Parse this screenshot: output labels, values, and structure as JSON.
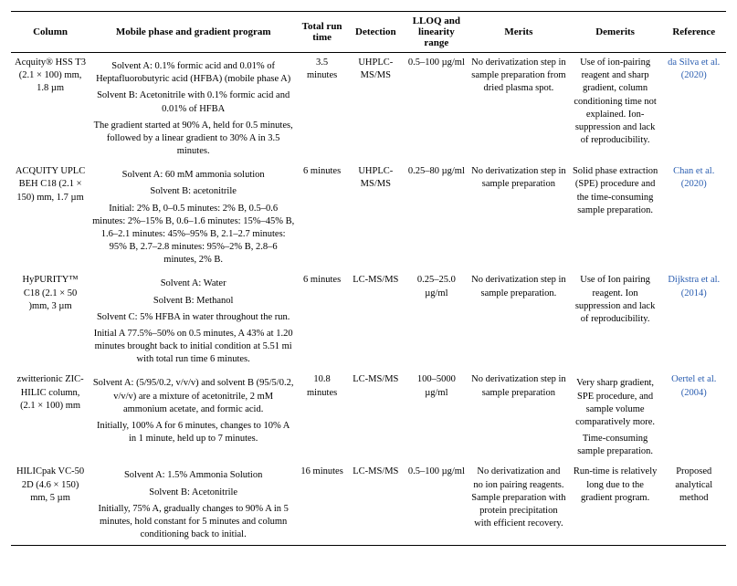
{
  "headers": {
    "c1": "Column",
    "c2": "Mobile phase and gradient program",
    "c3": "Total run time",
    "c4": "Detection",
    "c5": "LLOQ and linearity range",
    "c6": "Merits",
    "c7": "Demerits",
    "c8": "Reference"
  },
  "rows": [
    {
      "column": "Acquity® HSS T3 (2.1 × 100) mm, 1.8 µm",
      "mobile_p1": "Solvent A: 0.1% formic acid and 0.01% of Heptafluorobutyric acid (HFBA) (mobile phase A)",
      "mobile_p2": "Solvent B: Acetonitrile with 0.1% formic acid and 0.01% of HFBA",
      "mobile_p3": "The gradient started at 90% A, held for 0.5 minutes, followed by a linear gradient to 30% A in 3.5 minutes.",
      "runtime": "3.5 minutes",
      "detection": "UHPLC-MS/MS",
      "lloq": "0.5–100 µg/ml",
      "merits": "No derivatization step in sample preparation from dried plasma spot.",
      "demerits": "Use of ion-pairing reagent and sharp gradient, column conditioning time not explained. Ion-suppression and lack of reproducibility.",
      "ref_link": "da Silva et al. (2020)",
      "ref_text": ""
    },
    {
      "column": "ACQUITY UPLC BEH C18 (2.1 × 150) mm, 1.7 µm",
      "mobile_p1": "Solvent A: 60 mM ammonia solution",
      "mobile_p2": "Solvent B: acetonitrile",
      "mobile_p3": "Initial: 2% B, 0–0.5 minutes: 2% B, 0.5–0.6 minutes: 2%–15% B, 0.6–1.6 minutes: 15%–45% B, 1.6–2.1 minutes: 45%–95% B, 2.1–2.7 minutes: 95% B, 2.7–2.8 minutes: 95%–2% B, 2.8–6 minutes, 2% B.",
      "runtime": "6 minutes",
      "detection": "UHPLC-MS/MS",
      "lloq": "0.25–80 µg/ml",
      "merits": "No derivatization step in sample preparation",
      "demerits": "Solid phase extraction (SPE) procedure and the time-consuming sample preparation.",
      "ref_link": "Chan et al. (2020)",
      "ref_text": ""
    },
    {
      "column": "HyPURITY™ C18 (2.1 × 50 )mm, 3 µm",
      "mobile_p1": "Solvent A: Water",
      "mobile_p2": "Solvent B: Methanol",
      "mobile_p3": "Solvent C: 5% HFBA in water throughout the run.",
      "mobile_p4": "Initial A 77.5%–50% on 0.5 minutes, A 43% at 1.20 minutes brought back to initial condition at 5.51 mi with total run time 6 minutes.",
      "runtime": "6 minutes",
      "detection": "LC-MS/MS",
      "lloq": "0.25–25.0 µg/ml",
      "merits": "No derivatization step in sample preparation.",
      "demerits": "Use of Ion pairing reagent. Ion suppression and lack of reproducibility.",
      "ref_link": "Dijkstra et al. (2014)",
      "ref_text": ""
    },
    {
      "column": "zwitterionic ZIC-HILIC column, (2.1 × 100) mm",
      "mobile_p1": "Solvent A: (5/95/0.2, v/v/v) and solvent B (95/5/0.2, v/v/v) are a mixture of acetonitrile, 2 mM ammonium acetate, and formic acid.",
      "mobile_p2": "",
      "mobile_p3": "Initially, 100% A for 6 minutes, changes to 10% A in 1 minute, held up to 7 minutes.",
      "runtime": "10.8 minutes",
      "detection": "LC-MS/MS",
      "lloq": "100–5000 µg/ml",
      "merits": "No derivatization step in sample preparation",
      "demerits": "Very sharp gradient, SPE procedure, and sample volume comparatively more.",
      "demerits_2": "Time-consuming sample preparation.",
      "ref_link": "Oertel et al. (2004)",
      "ref_text": ""
    },
    {
      "column": "HILICpak VC-50 2D (4.6 × 150) mm, 5 µm",
      "mobile_p1": "Solvent A: 1.5% Ammonia Solution",
      "mobile_p2": "Solvent B: Acetonitrile",
      "mobile_p3": "Initially, 75% A, gradually changes to 90% A in 5 minutes, hold constant for 5 minutes and column conditioning back to initial.",
      "runtime": "16 minutes",
      "detection": "LC-MS/MS",
      "lloq": "0.5–100 µg/ml",
      "merits": "No derivatization and no ion pairing reagents. Sample preparation with protein precipitation with efficient recovery.",
      "demerits": "Run-time is relatively long due to the gradient program.",
      "ref_link": "",
      "ref_text": "Proposed analytical method"
    }
  ]
}
